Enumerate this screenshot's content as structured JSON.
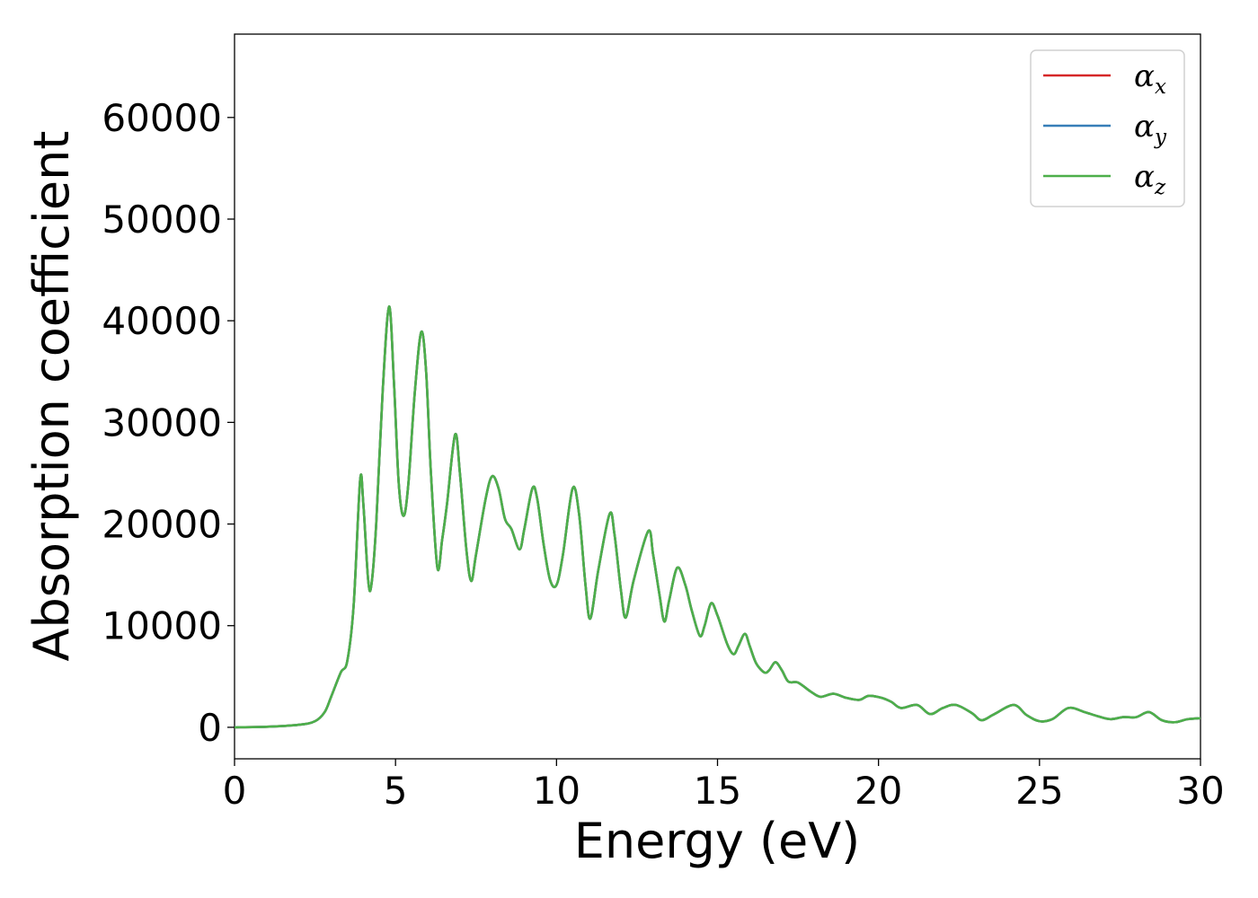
{
  "chart_data": {
    "type": "line",
    "title": "",
    "xlabel": "Energy (eV)",
    "ylabel": "Absorption coefficient",
    "xlim": [
      0,
      30
    ],
    "ylim": [
      -3100,
      68200
    ],
    "xticks": [
      0,
      5,
      10,
      15,
      20,
      25,
      30
    ],
    "xtick_labels": [
      "0",
      "5",
      "10",
      "15",
      "20",
      "25",
      "30"
    ],
    "yticks": [
      0,
      10000,
      20000,
      30000,
      40000,
      50000,
      60000
    ],
    "ytick_labels": [
      "0",
      "10000",
      "20000",
      "30000",
      "40000",
      "50000",
      "60000"
    ],
    "grid": false,
    "legend_position": "top-right",
    "legend": [
      {
        "symbol": "α",
        "sub": "x",
        "color": "#d62728"
      },
      {
        "symbol": "α",
        "sub": "y",
        "color": "#377eb8"
      },
      {
        "symbol": "α",
        "sub": "z",
        "color": "#4daf4a"
      }
    ],
    "points": [
      [
        0,
        0
      ],
      [
        1,
        50
      ],
      [
        2,
        250
      ],
      [
        2.5,
        600
      ],
      [
        2.8,
        1500
      ],
      [
        3.0,
        3000
      ],
      [
        3.3,
        5400
      ],
      [
        3.5,
        6500
      ],
      [
        3.7,
        12000
      ],
      [
        3.9,
        24300
      ],
      [
        4.0,
        22000
      ],
      [
        4.15,
        14500
      ],
      [
        4.25,
        14000
      ],
      [
        4.4,
        20000
      ],
      [
        4.6,
        33000
      ],
      [
        4.8,
        41400
      ],
      [
        4.95,
        34000
      ],
      [
        5.1,
        24000
      ],
      [
        5.25,
        20800
      ],
      [
        5.4,
        24000
      ],
      [
        5.6,
        33000
      ],
      [
        5.8,
        38900
      ],
      [
        5.95,
        35000
      ],
      [
        6.1,
        25000
      ],
      [
        6.3,
        15700
      ],
      [
        6.45,
        18500
      ],
      [
        6.6,
        22000
      ],
      [
        6.85,
        28800
      ],
      [
        7.0,
        25000
      ],
      [
        7.2,
        17500
      ],
      [
        7.35,
        14400
      ],
      [
        7.5,
        17000
      ],
      [
        7.8,
        22500
      ],
      [
        8.0,
        24700
      ],
      [
        8.2,
        23500
      ],
      [
        8.4,
        20500
      ],
      [
        8.6,
        19500
      ],
      [
        8.85,
        17500
      ],
      [
        9.0,
        19500
      ],
      [
        9.25,
        23500
      ],
      [
        9.4,
        22500
      ],
      [
        9.6,
        18000
      ],
      [
        9.8,
        14500
      ],
      [
        10.0,
        14000
      ],
      [
        10.2,
        17000
      ],
      [
        10.5,
        23500
      ],
      [
        10.7,
        21000
      ],
      [
        10.9,
        14000
      ],
      [
        11.05,
        10700
      ],
      [
        11.3,
        15500
      ],
      [
        11.65,
        21000
      ],
      [
        11.8,
        19000
      ],
      [
        12.0,
        13500
      ],
      [
        12.15,
        10800
      ],
      [
        12.4,
        14500
      ],
      [
        12.85,
        19300
      ],
      [
        13.0,
        17000
      ],
      [
        13.2,
        13000
      ],
      [
        13.35,
        10400
      ],
      [
        13.5,
        12500
      ],
      [
        13.75,
        15700
      ],
      [
        14.0,
        14000
      ],
      [
        14.2,
        11500
      ],
      [
        14.45,
        9000
      ],
      [
        14.6,
        10000
      ],
      [
        14.8,
        12200
      ],
      [
        15.0,
        11000
      ],
      [
        15.3,
        8200
      ],
      [
        15.5,
        7200
      ],
      [
        15.65,
        8000
      ],
      [
        15.85,
        9200
      ],
      [
        16.0,
        8000
      ],
      [
        16.2,
        6300
      ],
      [
        16.45,
        5400
      ],
      [
        16.6,
        5600
      ],
      [
        16.8,
        6400
      ],
      [
        17.0,
        5600
      ],
      [
        17.2,
        4500
      ],
      [
        17.5,
        4400
      ],
      [
        17.9,
        3500
      ],
      [
        18.2,
        3000
      ],
      [
        18.6,
        3300
      ],
      [
        19.0,
        2900
      ],
      [
        19.4,
        2700
      ],
      [
        19.7,
        3100
      ],
      [
        20.1,
        2900
      ],
      [
        20.4,
        2500
      ],
      [
        20.7,
        1900
      ],
      [
        21.2,
        2200
      ],
      [
        21.6,
        1300
      ],
      [
        22.0,
        1900
      ],
      [
        22.4,
        2200
      ],
      [
        22.9,
        1400
      ],
      [
        23.2,
        700
      ],
      [
        23.6,
        1300
      ],
      [
        24.2,
        2200
      ],
      [
        24.6,
        1200
      ],
      [
        25.0,
        600
      ],
      [
        25.4,
        800
      ],
      [
        25.9,
        1900
      ],
      [
        26.4,
        1500
      ],
      [
        26.8,
        1100
      ],
      [
        27.2,
        800
      ],
      [
        27.6,
        1000
      ],
      [
        28.0,
        1000
      ],
      [
        28.4,
        1500
      ],
      [
        28.8,
        700
      ],
      [
        29.2,
        500
      ],
      [
        29.6,
        800
      ],
      [
        30,
        900
      ]
    ]
  }
}
